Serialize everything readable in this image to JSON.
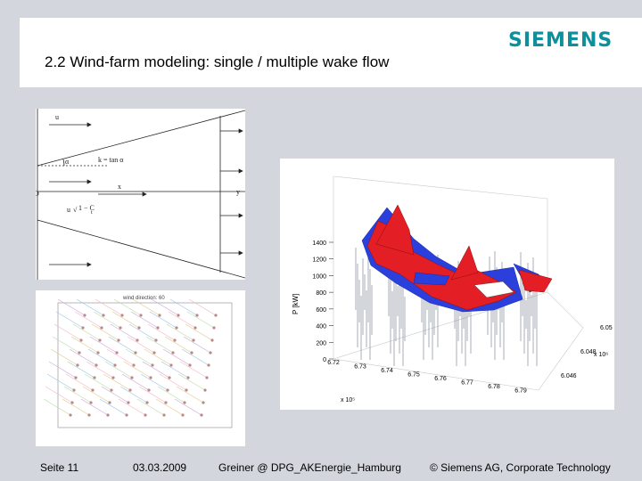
{
  "slide": {
    "title": "2.2  Wind-farm modeling:  single / multiple wake flow",
    "logo": "SIEMENS"
  },
  "wake_diagram": {
    "labels": [
      "u",
      "α",
      "k = tan α",
      "x",
      "D",
      "y",
      "u",
      "√",
      "1 − C",
      "t"
    ]
  },
  "wind_direction_plot": {
    "title": "wind direction: 60"
  },
  "chart_data": {
    "type": "surface3d",
    "zlabel": "P [kW]",
    "z_ticks": [
      0,
      200,
      400,
      600,
      800,
      1000,
      1200,
      1400
    ],
    "x_ticks": [
      "6.72",
      "6.73",
      "6.74",
      "6.75",
      "6.76",
      "6.77",
      "6.78",
      "6.79"
    ],
    "x_exponent": "x 10⁵",
    "y_ticks": [
      "6.046",
      "6.048",
      "6.05"
    ],
    "y_exponent": "x 10⁶",
    "colors": {
      "surface_top": "#e31e24",
      "surface_under": "#2a3fdc",
      "stems": "#6d7788"
    }
  },
  "footer": {
    "page": "Seite 11",
    "date": "03.03.2009",
    "author": "Greiner @ DPG_AKEnergie_Hamburg",
    "copyright": "© Siemens AG, Corporate Technology"
  }
}
